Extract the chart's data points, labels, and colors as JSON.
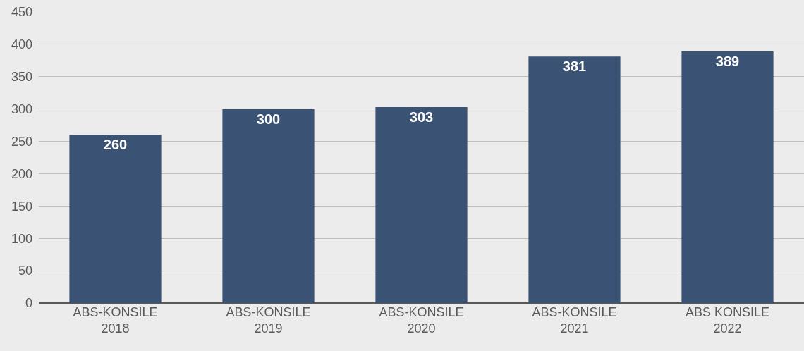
{
  "chart_data": {
    "type": "bar",
    "categories": [
      "ABS-KONSILE\n2018",
      "ABS-KONSILE\n2019",
      "ABS-KONSILE\n2020",
      "ABS-KONSILE\n2021",
      "ABS KONSILE\n2022"
    ],
    "values": [
      260,
      300,
      303,
      381,
      389
    ],
    "color": "#3a5273",
    "data_labels": true,
    "ylim": [
      0,
      450
    ],
    "yticks": [
      0,
      50,
      100,
      150,
      200,
      250,
      300,
      350,
      400,
      450
    ],
    "grid": "y",
    "legend": false
  }
}
